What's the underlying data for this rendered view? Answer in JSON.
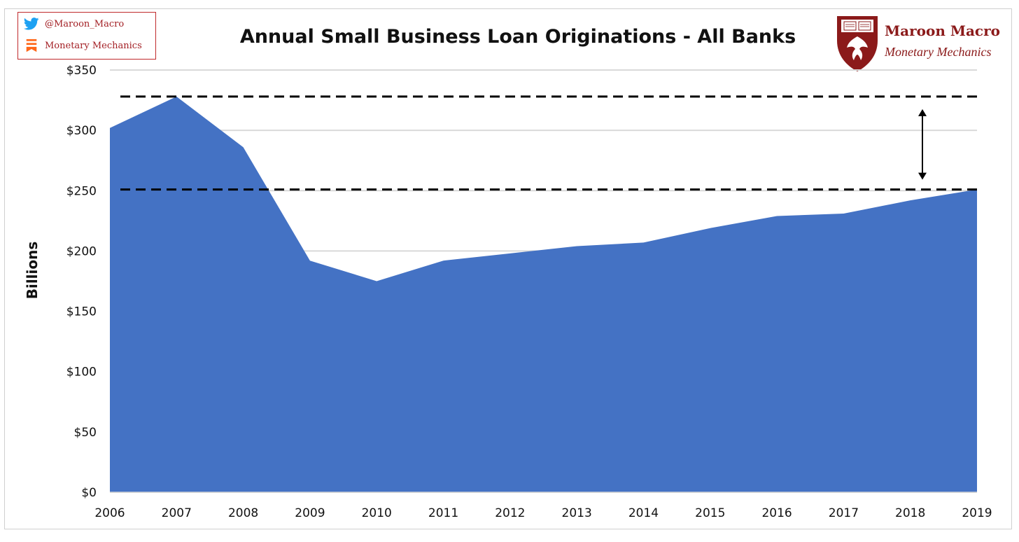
{
  "social": {
    "twitter_handle": "@Maroon_Macro",
    "substack_name": "Monetary Mechanics",
    "twitter_color": "#1da1f2",
    "substack_color": "#ff6719"
  },
  "brand": {
    "name": "Maroon Macro",
    "subtitle": "Monetary Mechanics",
    "color": "#8b1a1a"
  },
  "colors": {
    "area": "#4472c4",
    "grid": "#d9d9d9",
    "reference_line": "#000000"
  },
  "chart_data": {
    "type": "area",
    "title": "Annual Small Business Loan Originations - All Banks",
    "xlabel": "",
    "ylabel": "Billions",
    "x": [
      "2006",
      "2007",
      "2008",
      "2009",
      "2010",
      "2011",
      "2012",
      "2013",
      "2014",
      "2015",
      "2016",
      "2017",
      "2018",
      "2019"
    ],
    "series": [
      {
        "values": [
          302,
          328,
          286,
          192,
          175,
          192,
          198,
          204,
          207,
          219,
          229,
          231,
          242,
          251
        ]
      }
    ],
    "ylim": [
      0,
      350
    ],
    "yticks": [
      0,
      50,
      100,
      150,
      200,
      250,
      300,
      350
    ],
    "ytick_labels": [
      "$0",
      "$50",
      "$100",
      "$150",
      "$200",
      "$250",
      "$300",
      "$350"
    ],
    "grid": true,
    "reference_lines": [
      {
        "y": 328,
        "style": "dashed"
      },
      {
        "y": 251,
        "style": "dashed"
      }
    ],
    "annotation": {
      "type": "double-arrow",
      "from": 251,
      "to": 328,
      "at_x": "2018-2019"
    }
  }
}
